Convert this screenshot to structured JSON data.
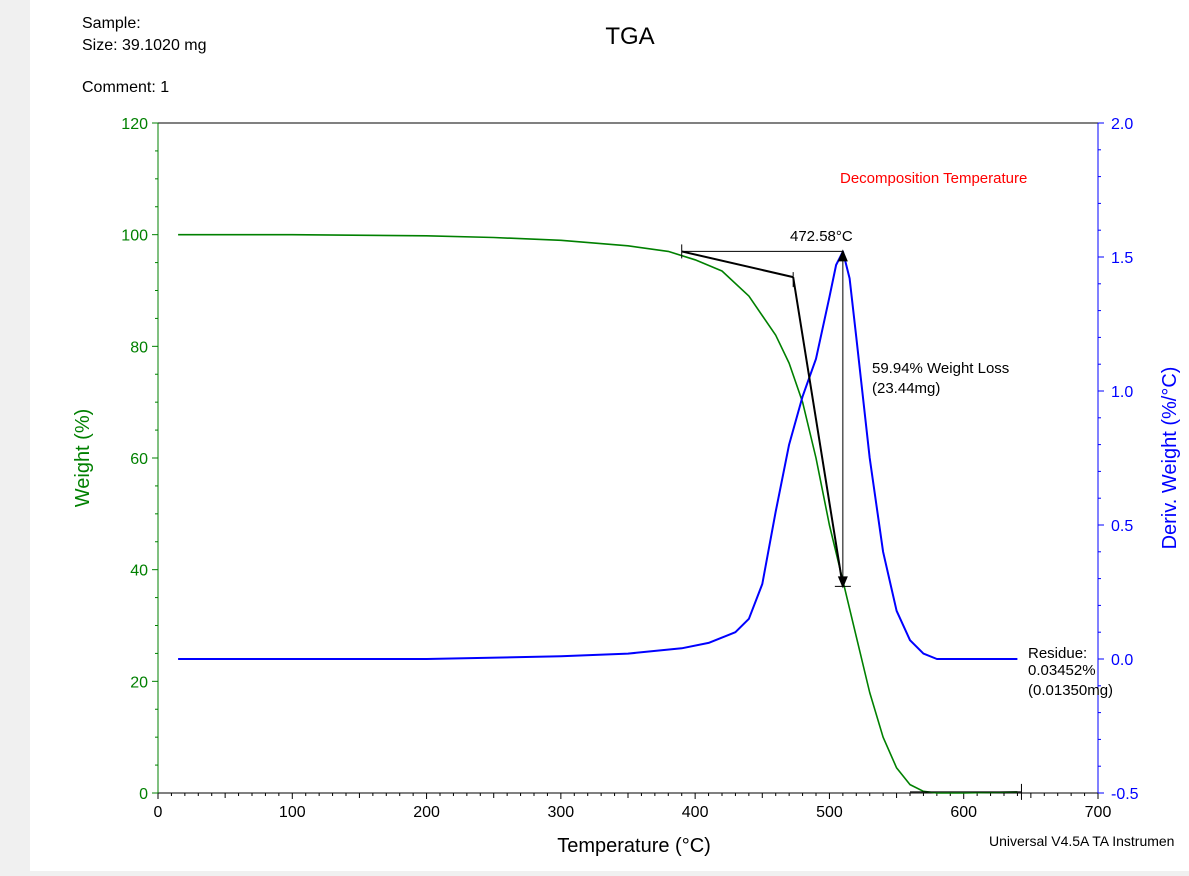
{
  "header": {
    "sample_label": "Sample:",
    "size_text": "Size:  39.1020 mg",
    "comment_text": "Comment: 1"
  },
  "footer": {
    "software": "Universal V4.5A TA Instrumen"
  },
  "chart_data": {
    "type": "line",
    "title": "TGA",
    "xlabel": "Temperature (°C)",
    "ylabel_left": "Weight (%)",
    "ylabel_right": "Deriv. Weight (%/°C)",
    "xlim": [
      0,
      700
    ],
    "ylim_left": [
      0,
      120
    ],
    "ylim_right": [
      -0.5,
      2.0
    ],
    "x_ticks": [
      "0",
      "100",
      "200",
      "300",
      "400",
      "500",
      "600",
      "700"
    ],
    "y_ticks_left": [
      "0",
      "20",
      "40",
      "60",
      "80",
      "100",
      "120"
    ],
    "y_ticks_right": [
      "-0.5",
      "0.0",
      "0.5",
      "1.0",
      "1.5",
      "2.0"
    ],
    "colors": {
      "weight": "#008000",
      "deriv": "#0000ff",
      "annotation": "#000000",
      "decomposition": "#ff0000",
      "frame": "#000000"
    },
    "series": [
      {
        "axis": "left",
        "color": "#008000",
        "x": [
          15,
          100,
          200,
          250,
          300,
          350,
          380,
          400,
          420,
          440,
          460,
          470,
          480,
          490,
          500,
          510,
          520,
          530,
          540,
          550,
          560,
          570,
          580,
          600,
          640
        ],
        "y": [
          100,
          100,
          99.8,
          99.5,
          99,
          98,
          97,
          95.5,
          93.5,
          89,
          82,
          77,
          70,
          60,
          48,
          38,
          28,
          18,
          10,
          4.5,
          1.5,
          0.3,
          0,
          0,
          0.2
        ]
      },
      {
        "axis": "right",
        "color": "#0000ff",
        "x": [
          15,
          100,
          200,
          300,
          350,
          390,
          410,
          420,
          430,
          440,
          450,
          460,
          470,
          480,
          490,
          500,
          505,
          510,
          515,
          520,
          530,
          540,
          550,
          560,
          570,
          580,
          600,
          640
        ],
        "y": [
          0,
          0,
          0,
          0.01,
          0.02,
          0.04,
          0.06,
          0.08,
          0.1,
          0.15,
          0.28,
          0.55,
          0.8,
          0.98,
          1.12,
          1.35,
          1.47,
          1.52,
          1.42,
          1.2,
          0.75,
          0.4,
          0.18,
          0.07,
          0.02,
          0,
          0,
          0
        ]
      }
    ],
    "annotations": {
      "decomposition_label": "Decomposition Temperature",
      "onset_label": "472.58°C",
      "weight_loss_line1": "59.94% Weight Loss",
      "weight_loss_line2": "(23.44mg)",
      "residue_line1": "Residue:",
      "residue_line2": "0.03452%",
      "residue_line3": "(0.01350mg)",
      "onset_temperature": 472.58,
      "tangent_start": [
        390,
        97
      ],
      "tangent_knee": [
        473,
        92.4
      ],
      "inflection": [
        510,
        37
      ],
      "loss_top": [
        510,
        97
      ],
      "loss_bottom": [
        510,
        37
      ],
      "residue_marker": [
        643,
        0.2
      ]
    }
  }
}
